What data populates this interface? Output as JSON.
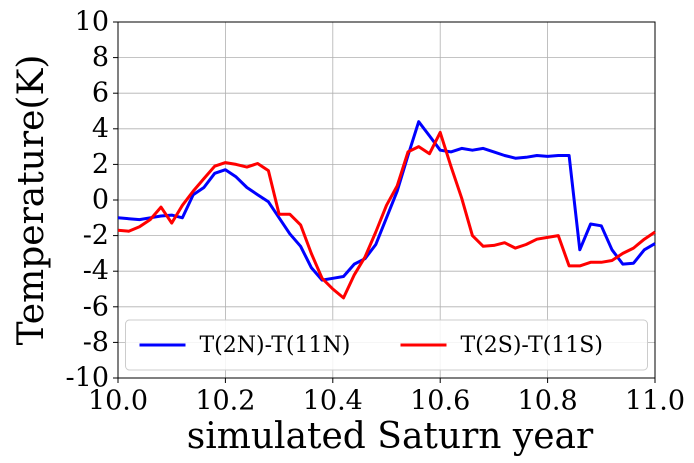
{
  "chart_data": {
    "type": "line",
    "xlabel": "simulated Saturn year",
    "ylabel": "Temperature(K)",
    "x": [
      10.0,
      10.02,
      10.04,
      10.06,
      10.08,
      10.1,
      10.12,
      10.14,
      10.16,
      10.18,
      10.2,
      10.22,
      10.24,
      10.26,
      10.28,
      10.3,
      10.32,
      10.34,
      10.36,
      10.38,
      10.4,
      10.42,
      10.44,
      10.46,
      10.48,
      10.5,
      10.52,
      10.54,
      10.56,
      10.58,
      10.6,
      10.62,
      10.64,
      10.66,
      10.68,
      10.7,
      10.72,
      10.74,
      10.76,
      10.78,
      10.8,
      10.82,
      10.84,
      10.86,
      10.88,
      10.9,
      10.92,
      10.94,
      10.96,
      10.98,
      11.0
    ],
    "series": [
      {
        "name": "T(2N)-T(11N)",
        "color": "#0000ff",
        "values": [
          -1.0,
          -1.05,
          -1.1,
          -1.0,
          -0.9,
          -0.85,
          -1.0,
          0.3,
          0.7,
          1.5,
          1.7,
          1.3,
          0.7,
          0.3,
          -0.1,
          -1.0,
          -1.9,
          -2.6,
          -3.8,
          -4.5,
          -4.4,
          -4.3,
          -3.6,
          -3.3,
          -2.5,
          -1.0,
          0.5,
          2.5,
          4.4,
          3.6,
          2.8,
          2.7,
          2.9,
          2.8,
          2.9,
          2.7,
          2.5,
          2.35,
          2.4,
          2.5,
          2.45,
          2.5,
          2.5,
          -2.8,
          -1.35,
          -1.45,
          -2.8,
          -3.6,
          -3.55,
          -2.8,
          -2.45
        ]
      },
      {
        "name": "T(2S)-T(11S)",
        "color": "#ff0000",
        "values": [
          -1.7,
          -1.75,
          -1.5,
          -1.1,
          -0.4,
          -1.3,
          -0.3,
          0.5,
          1.2,
          1.9,
          2.1,
          2.0,
          1.85,
          2.05,
          1.65,
          -0.8,
          -0.8,
          -1.4,
          -3.0,
          -4.4,
          -5.0,
          -5.5,
          -4.2,
          -3.2,
          -1.8,
          -0.3,
          0.8,
          2.7,
          3.0,
          2.6,
          3.8,
          1.9,
          0.1,
          -2.0,
          -2.6,
          -2.55,
          -2.4,
          -2.7,
          -2.5,
          -2.2,
          -2.1,
          -2.0,
          -3.7,
          -3.7,
          -3.5,
          -3.5,
          -3.4,
          -3.0,
          -2.7,
          -2.2,
          -1.8
        ]
      }
    ],
    "xlim": [
      10.0,
      11.0
    ],
    "xticks": [
      {
        "value": 10.0,
        "label": "10.0"
      },
      10.2,
      10.4,
      10.6,
      10.8,
      {
        "value": 11.0,
        "label": "11.0"
      }
    ],
    "ylim": [
      -10,
      10
    ],
    "yticks": [
      -10,
      -8,
      -6,
      -4,
      -2,
      0,
      2,
      4,
      6,
      8,
      10
    ],
    "grid": true,
    "legend": "lower center"
  }
}
